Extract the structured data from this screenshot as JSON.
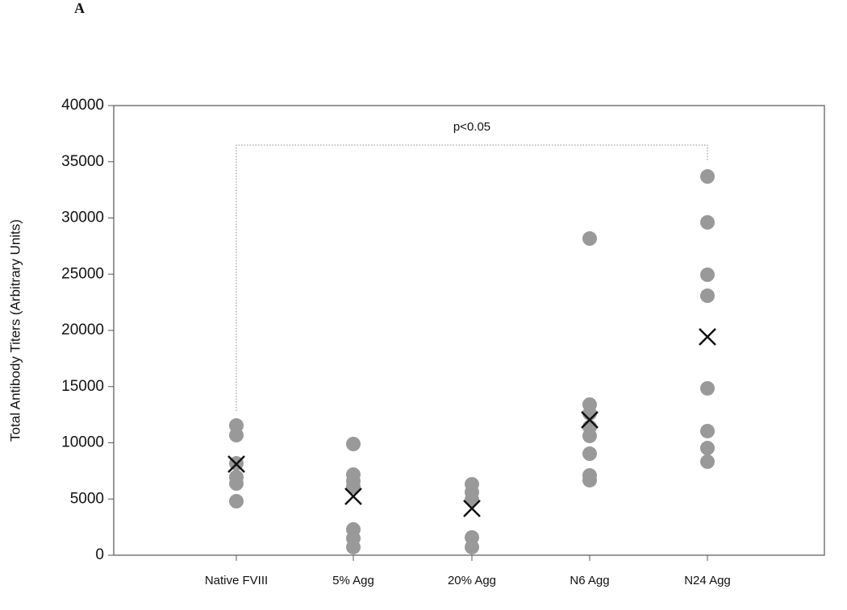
{
  "chart_data": {
    "type": "dot",
    "panel_label": "A",
    "ylabel": "Total Antibody Titers (Arbitrary Units)",
    "annotation": "p<0.05",
    "categories": [
      "Native FVIII",
      "5% Agg",
      "20% Agg",
      "N6 Agg",
      "N24 Agg"
    ],
    "points": [
      [
        11540,
        10680,
        8170,
        6950,
        6380,
        4800
      ],
      [
        9890,
        7170,
        6600,
        6090,
        2290,
        1500,
        720
      ],
      [
        6310,
        5590,
        4950,
        1580,
        720
      ],
      [
        28170,
        13400,
        12620,
        11400,
        10610,
        9030,
        7100,
        6670
      ],
      [
        33690,
        29610,
        24950,
        23080,
        14840,
        11040,
        9530,
        8320
      ]
    ],
    "means": [
      8100,
      5230,
      4160,
      12040,
      19430
    ],
    "color": "#999999",
    "mean_color": "#111111",
    "ylim": [
      0,
      40000
    ],
    "yticks": [
      0,
      5000,
      10000,
      15000,
      20000,
      25000,
      30000,
      35000,
      40000
    ]
  }
}
